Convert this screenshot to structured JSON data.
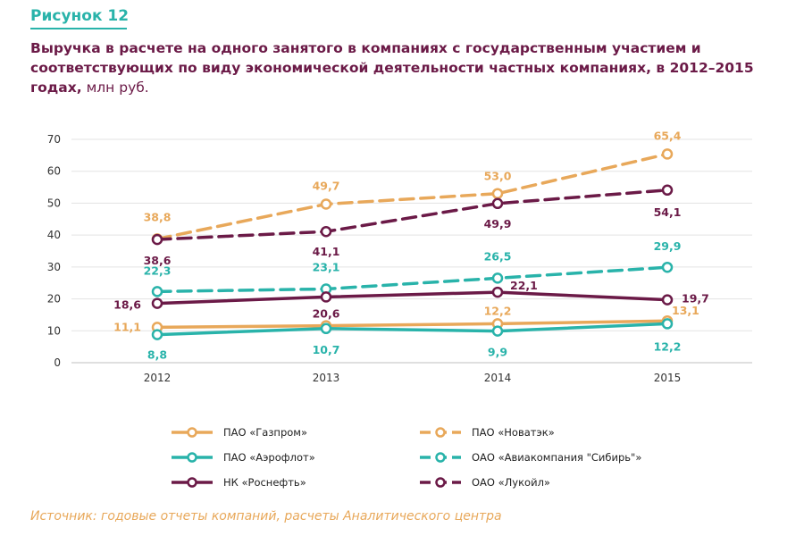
{
  "figure_label": "Рисунок 12",
  "title_bold": "Выручка в расчете на одного занятого в компаниях с государственным участием и соответствующих по виду экономической деятельности частных компаниях, в 2012–2015 годах,",
  "title_unit": "млн руб.",
  "source": "Источник: годовые отчеты компаний, расчеты Аналитического центра",
  "chart_data": {
    "type": "line",
    "x": [
      "2012",
      "2013",
      "2014",
      "2015"
    ],
    "ylim": [
      0,
      70
    ],
    "yticks": [
      "0",
      "10",
      "20",
      "30",
      "40",
      "50",
      "60",
      "70"
    ],
    "grid": true,
    "legend_position": "bottom",
    "series": [
      {
        "name": "ПАО «Газпром»",
        "values": [
          11.1,
          11.6,
          12.2,
          13.1
        ],
        "labels": [
          "11,1",
          "",
          "12,2",
          "13,1"
        ],
        "color": "#e8a85a",
        "dashed": false
      },
      {
        "name": "ПАО «Новатэк»",
        "values": [
          38.8,
          49.7,
          53.0,
          65.4
        ],
        "labels": [
          "38,8",
          "49,7",
          "53,0",
          "65,4"
        ],
        "color": "#e8a85a",
        "dashed": true
      },
      {
        "name": "ПАО «Аэрофлот»",
        "values": [
          8.8,
          10.7,
          9.9,
          12.2
        ],
        "labels": [
          "8,8",
          "10,7",
          "9,9",
          "12,2"
        ],
        "color": "#29b3aa",
        "dashed": false
      },
      {
        "name": "ОАО «Авиакомпания \"Сибирь\"»",
        "values": [
          22.3,
          23.1,
          26.5,
          29.9
        ],
        "labels": [
          "22,3",
          "23,1",
          "26,5",
          "29,9"
        ],
        "color": "#29b3aa",
        "dashed": true
      },
      {
        "name": "НК «Роснефть»",
        "values": [
          18.6,
          20.6,
          22.1,
          19.7
        ],
        "labels": [
          "18,6",
          "20,6",
          "22,1",
          "19,7"
        ],
        "color": "#6b1a47",
        "dashed": false
      },
      {
        "name": "ОАО «Лукойл»",
        "values": [
          38.6,
          41.1,
          49.9,
          54.1
        ],
        "labels": [
          "38,6",
          "41,1",
          "49,9",
          "54,1"
        ],
        "color": "#6b1a47",
        "dashed": true
      }
    ]
  }
}
